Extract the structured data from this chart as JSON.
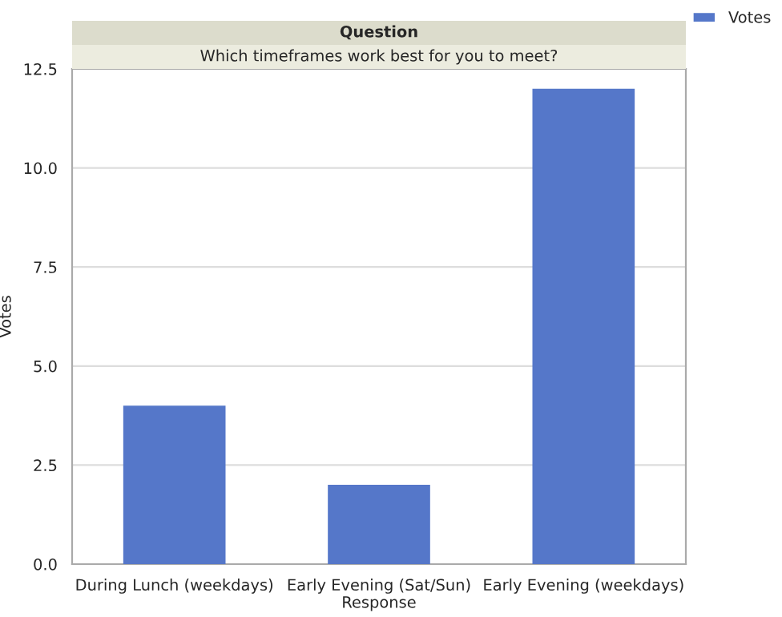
{
  "chart_data": {
    "type": "bar",
    "title": "Question",
    "subtitle": "Which timeframes work best for you to meet?",
    "xlabel": "Response",
    "ylabel": "Votes",
    "categories": [
      "During Lunch (weekdays)",
      "Early Evening (Sat/Sun)",
      "Early Evening (weekdays)"
    ],
    "series": [
      {
        "name": "Votes",
        "color": "#5577c9",
        "values": [
          4,
          2,
          12
        ]
      }
    ],
    "ylim": [
      0,
      12.5
    ],
    "yticks": [
      {
        "value": 0,
        "label": "0.0"
      },
      {
        "value": 2.5,
        "label": "2.5"
      },
      {
        "value": 5,
        "label": "5.0"
      },
      {
        "value": 7.5,
        "label": "7.5"
      },
      {
        "value": 10,
        "label": "10.0"
      },
      {
        "value": 12.5,
        "label": "12.5"
      }
    ],
    "grid": "y",
    "legend": "top right"
  }
}
